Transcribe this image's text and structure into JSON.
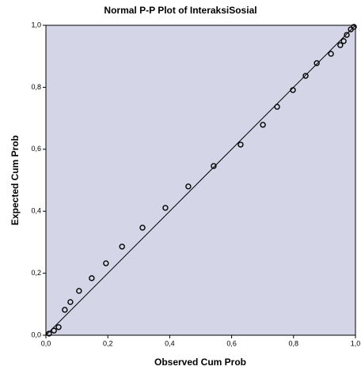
{
  "chart_data": {
    "type": "scatter",
    "title": "Normal P-P Plot of InteraksiSosial",
    "x_label": "Observed Cum Prob",
    "y_label": "Expected Cum Prob",
    "x": [
      0.01,
      0.026,
      0.041,
      0.061,
      0.079,
      0.107,
      0.148,
      0.194,
      0.246,
      0.312,
      0.386,
      0.46,
      0.542,
      0.629,
      0.701,
      0.747,
      0.798,
      0.839,
      0.875,
      0.921,
      0.951,
      0.962,
      0.972,
      0.985,
      0.995
    ],
    "values": [
      0.005,
      0.015,
      0.026,
      0.082,
      0.107,
      0.143,
      0.184,
      0.232,
      0.286,
      0.347,
      0.411,
      0.48,
      0.546,
      0.615,
      0.679,
      0.737,
      0.791,
      0.837,
      0.878,
      0.908,
      0.936,
      0.949,
      0.969,
      0.987,
      0.995
    ],
    "xlim": [
      0,
      1
    ],
    "ylim": [
      0,
      1
    ],
    "xticks": [
      {
        "value": 0,
        "label": "0,0"
      },
      {
        "value": 0.2,
        "label": "0,2"
      },
      {
        "value": 0.4,
        "label": "0,4"
      },
      {
        "value": 0.6,
        "label": "0,6"
      },
      {
        "value": 0.8,
        "label": "0,8"
      },
      {
        "value": 1,
        "label": "1,0"
      }
    ],
    "yticks": [
      {
        "value": 0,
        "label": "0,0"
      },
      {
        "value": 0.2,
        "label": "0,2"
      },
      {
        "value": 0.4,
        "label": "0,4"
      },
      {
        "value": 0.6,
        "label": "0,6"
      },
      {
        "value": 0.8,
        "label": "0,8"
      },
      {
        "value": 1,
        "label": "1,0"
      }
    ],
    "color": "#000000",
    "background": "#d5d5e8"
  }
}
